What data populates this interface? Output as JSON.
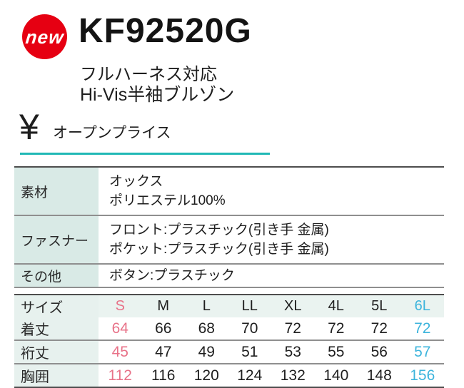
{
  "badge": {
    "label": "new",
    "color": "#e60012"
  },
  "header": {
    "product_code": "KF92520G",
    "subtitle_line1": "フルハーネス対応",
    "subtitle_line2": "Hi-Vis半袖ブルゾン"
  },
  "price": {
    "currency_symbol": "¥",
    "label": "オープンプライス",
    "underline_color": "#1fb8b5"
  },
  "spec_table": {
    "rows": [
      {
        "label": "素材",
        "lines": [
          "オックス",
          "ポリエステル100%"
        ]
      },
      {
        "label": "ファスナー",
        "lines": [
          "フロント:プラスチック(引き手 金属)",
          "ポケット:プラスチック(引き手 金属)"
        ]
      },
      {
        "label": "その他",
        "lines": [
          "ボタン:プラスチック"
        ]
      }
    ]
  },
  "size_table": {
    "header_label": "サイズ",
    "sizes": [
      "S",
      "M",
      "L",
      "LL",
      "XL",
      "4L",
      "5L",
      "6L"
    ],
    "rows": [
      {
        "label": "着丈",
        "values": [
          "64",
          "66",
          "68",
          "70",
          "72",
          "72",
          "72",
          "72"
        ]
      },
      {
        "label": "裄丈",
        "values": [
          "45",
          "47",
          "49",
          "51",
          "53",
          "55",
          "56",
          "57"
        ]
      },
      {
        "label": "胸囲",
        "values": [
          "112",
          "116",
          "120",
          "124",
          "132",
          "140",
          "148",
          "156"
        ]
      }
    ],
    "first_column_color": "#e87288",
    "last_column_color": "#3cb4dc"
  }
}
